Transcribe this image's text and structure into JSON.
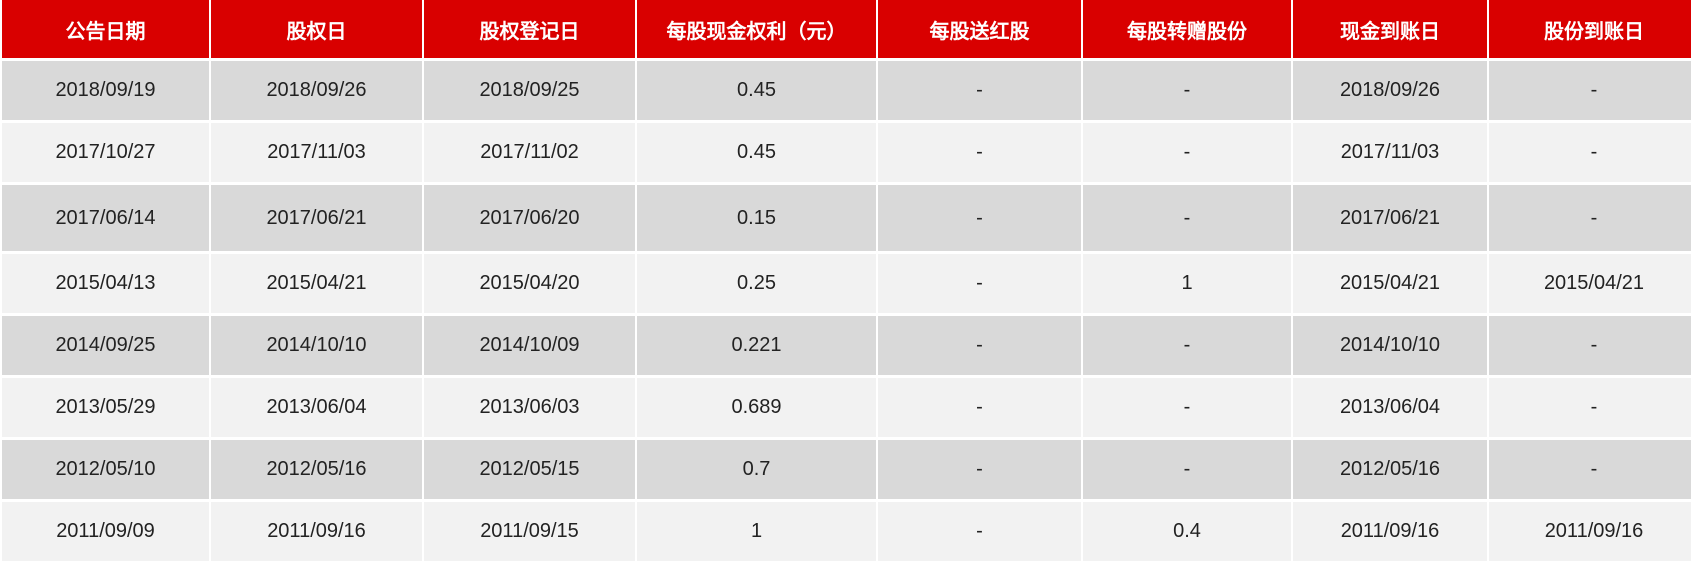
{
  "colors": {
    "header_bg": "#d90000",
    "header_text": "#ffffff",
    "row_dark": "#d9d9d9",
    "row_light": "#f2f2f2"
  },
  "headers": [
    "公告日期",
    "股权日",
    "股权登记日",
    "每股现金权利（元）",
    "每股送红股",
    "每股转赠股份",
    "现金到账日",
    "股份到账日"
  ],
  "rows": [
    [
      "2018/09/19",
      "2018/09/26",
      "2018/09/25",
      "0.45",
      "-",
      "-",
      "2018/09/26",
      "-"
    ],
    [
      "2017/10/27",
      "2017/11/03",
      "2017/11/02",
      "0.45",
      "-",
      "-",
      "2017/11/03",
      "-"
    ],
    [
      "2017/06/14",
      "2017/06/21",
      "2017/06/20",
      "0.15",
      "-",
      "-",
      "2017/06/21",
      "-"
    ],
    [
      "2015/04/13",
      "2015/04/21",
      "2015/04/20",
      "0.25",
      "-",
      "1",
      "2015/04/21",
      "2015/04/21"
    ],
    [
      "2014/09/25",
      "2014/10/10",
      "2014/10/09",
      "0.221",
      "-",
      "-",
      "2014/10/10",
      "-"
    ],
    [
      "2013/05/29",
      "2013/06/04",
      "2013/06/03",
      "0.689",
      "-",
      "-",
      "2013/06/04",
      "-"
    ],
    [
      "2012/05/10",
      "2012/05/16",
      "2012/05/15",
      "0.7",
      "-",
      "-",
      "2012/05/16",
      "-"
    ],
    [
      "2011/09/09",
      "2011/09/16",
      "2011/09/15",
      "1",
      "-",
      "0.4",
      "2011/09/16",
      "2011/09/16"
    ]
  ]
}
